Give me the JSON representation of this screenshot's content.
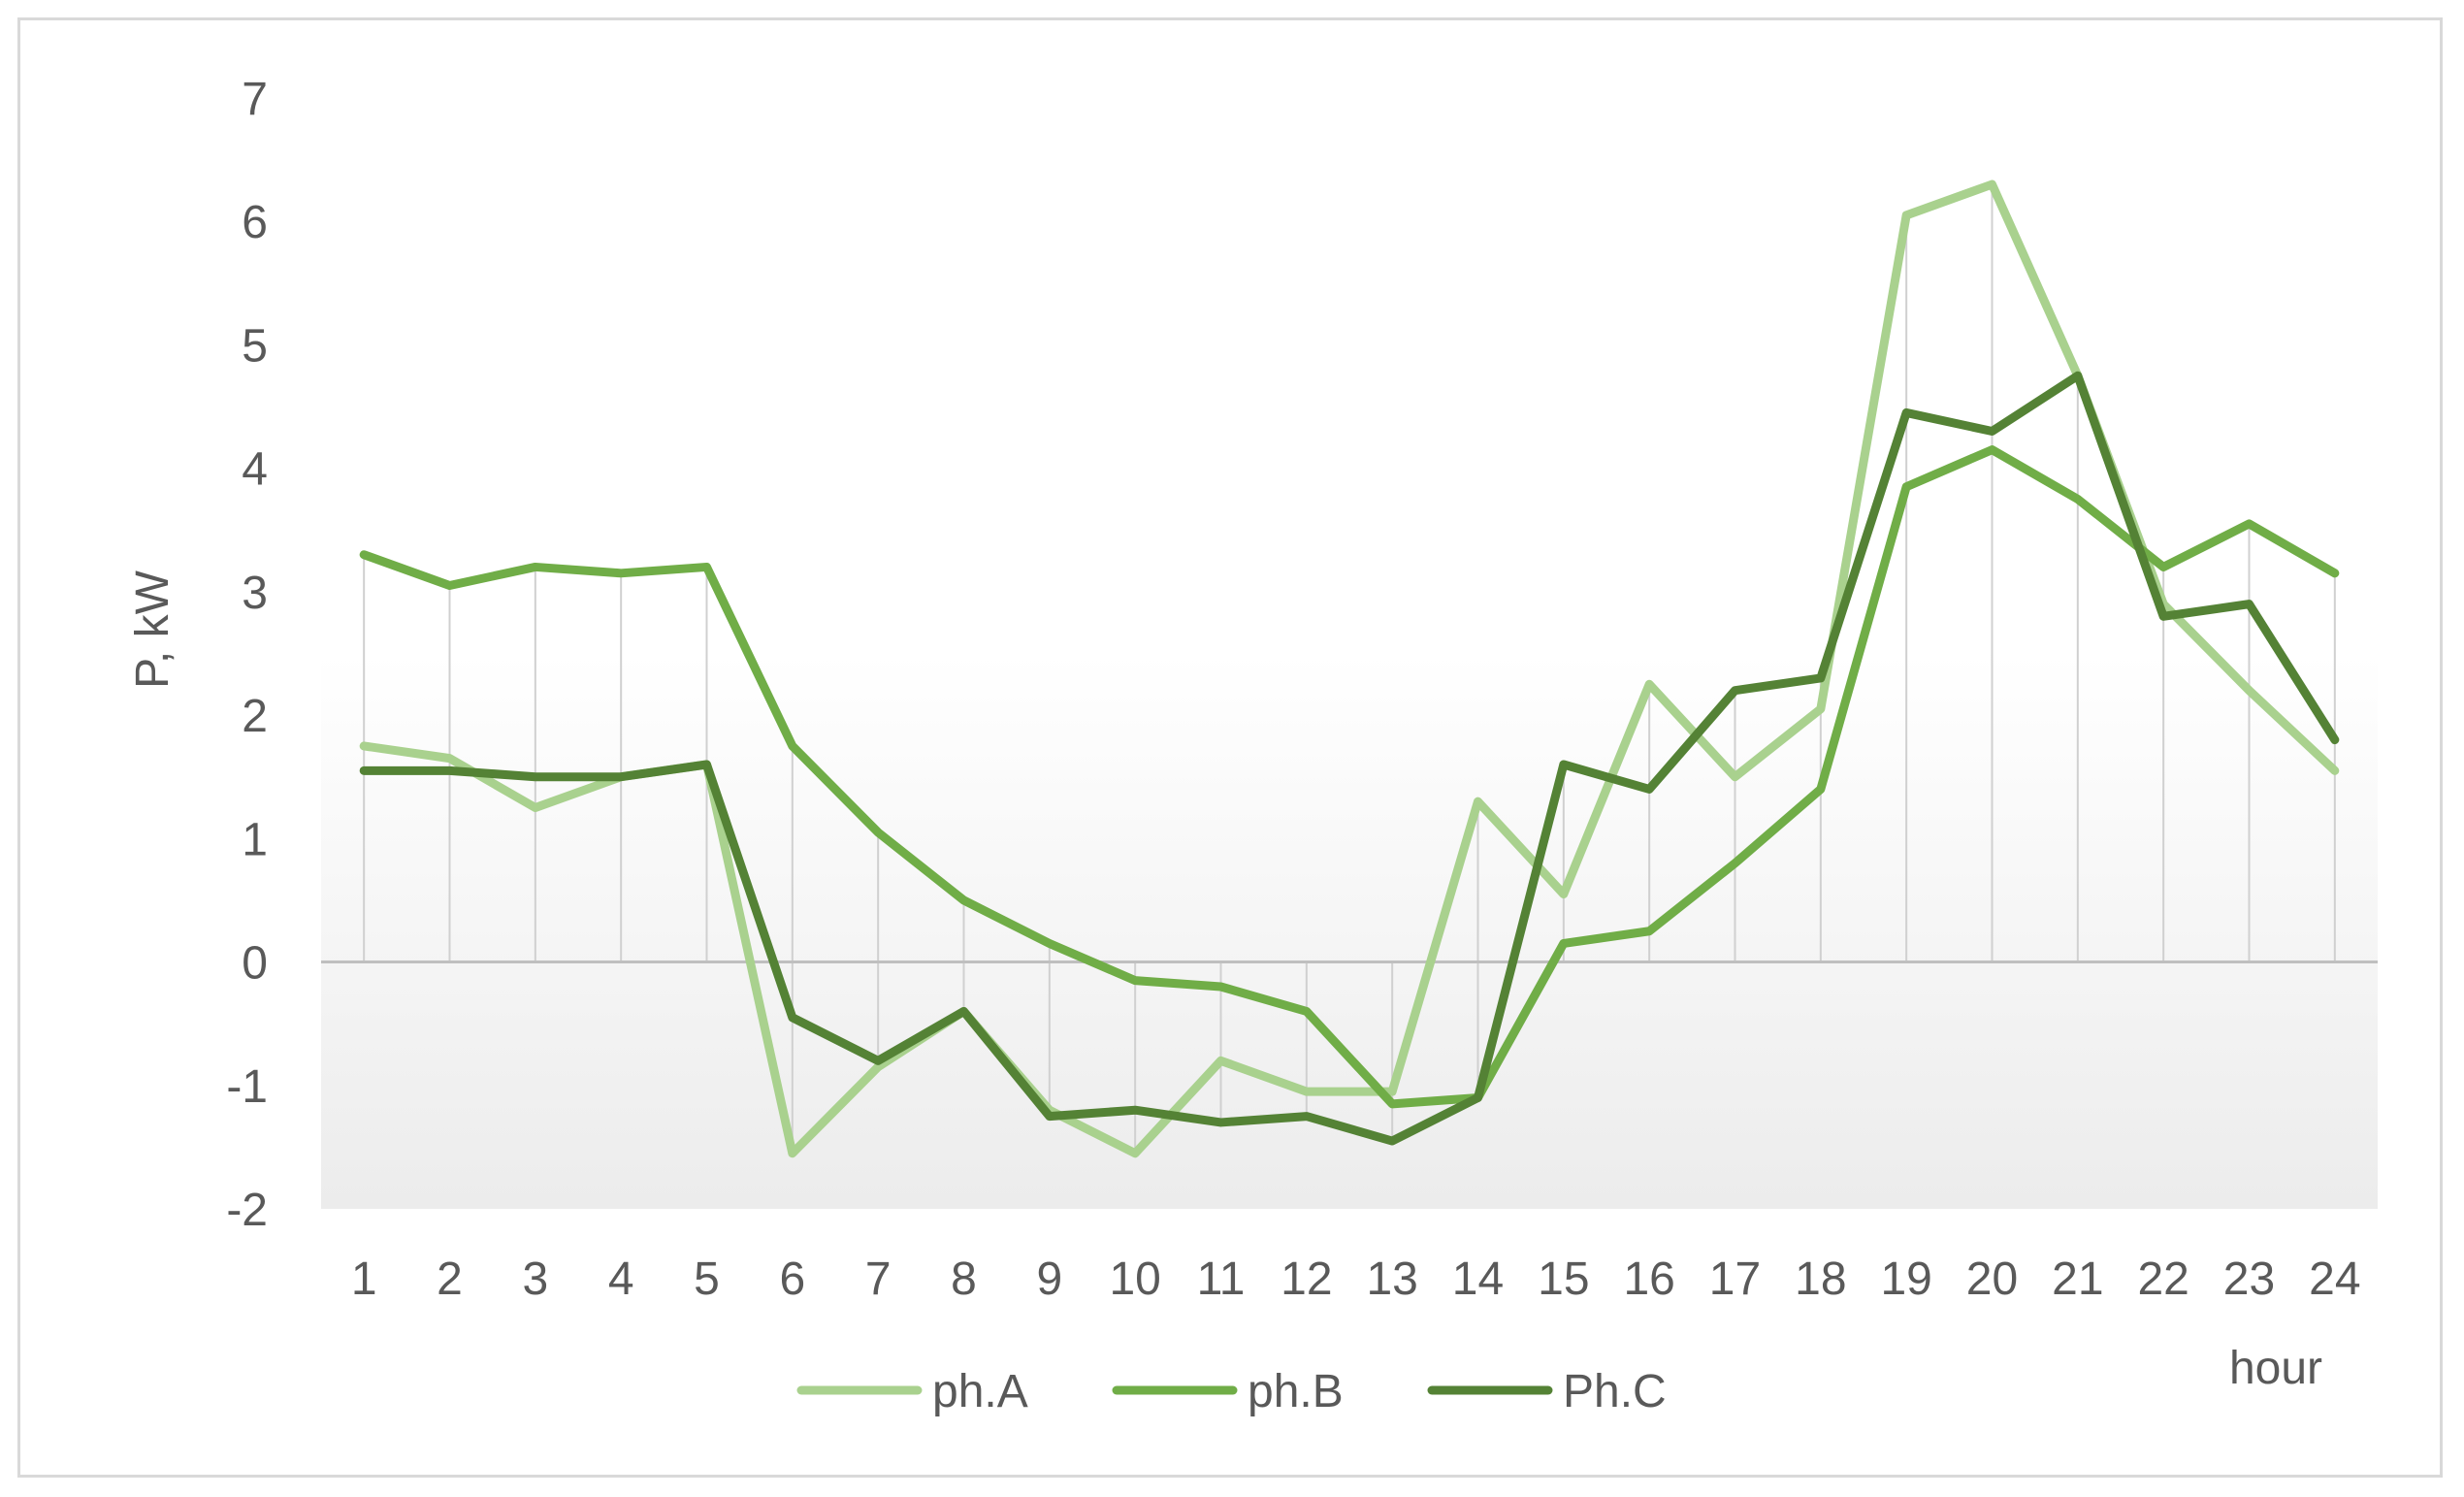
{
  "chart_data": {
    "type": "line",
    "title": "",
    "xlabel": "hour",
    "ylabel": "P, kW",
    "categories": [
      "1",
      "2",
      "3",
      "4",
      "5",
      "6",
      "7",
      "8",
      "9",
      "10",
      "11",
      "12",
      "13",
      "14",
      "15",
      "16",
      "17",
      "18",
      "19",
      "20",
      "21",
      "22",
      "23",
      "24"
    ],
    "ylim": [
      -2,
      7
    ],
    "yticks": [
      -2,
      -1,
      0,
      1,
      2,
      3,
      4,
      5,
      6,
      7
    ],
    "grid": false,
    "legend_position": "bottom",
    "series": [
      {
        "name": "ph.A",
        "color": "#a9d18e",
        "values": [
          1.75,
          1.65,
          1.25,
          1.5,
          1.6,
          -1.55,
          -0.85,
          -0.4,
          -1.2,
          -1.55,
          -0.8,
          -1.05,
          -1.05,
          1.3,
          0.55,
          2.25,
          1.5,
          2.05,
          6.05,
          6.3,
          4.75,
          2.9,
          2.2,
          1.55
        ]
      },
      {
        "name": "ph.B",
        "color": "#70ad47",
        "values": [
          3.3,
          3.05,
          3.2,
          3.15,
          3.2,
          1.75,
          1.05,
          0.5,
          0.15,
          -0.15,
          -0.2,
          -0.4,
          -1.15,
          -1.1,
          0.15,
          0.25,
          0.8,
          1.4,
          3.85,
          4.15,
          3.75,
          3.2,
          3.55,
          3.15
        ]
      },
      {
        "name": "Ph.C",
        "color": "#548235",
        "values": [
          1.55,
          1.55,
          1.5,
          1.5,
          1.6,
          -0.45,
          -0.8,
          -0.4,
          -1.25,
          -1.2,
          -1.3,
          -1.25,
          -1.45,
          -1.1,
          1.6,
          1.4,
          2.2,
          2.3,
          4.45,
          4.3,
          4.75,
          2.8,
          2.9,
          1.8
        ]
      }
    ]
  }
}
